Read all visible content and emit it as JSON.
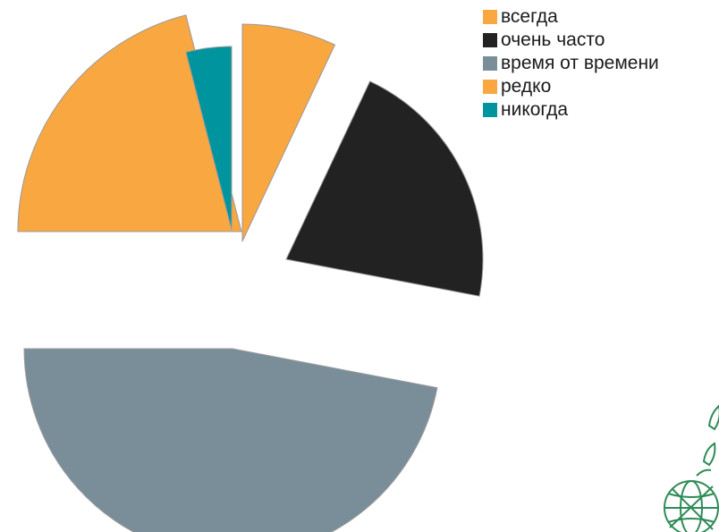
{
  "chart_data": {
    "type": "pie",
    "exploded": true,
    "legend_position": "top-right",
    "categories": [
      "всегда",
      "очень часто",
      "время от времени",
      "редко",
      "никогда"
    ],
    "values": [
      7,
      21,
      47,
      21,
      4
    ],
    "colors": [
      "#F9A740",
      "#222222",
      "#7A8E99",
      "#F9A740",
      "#00959E"
    ],
    "title": ""
  },
  "decor": {
    "icon": "globe-leaf-logo-icon",
    "color": "#2E8B57"
  }
}
